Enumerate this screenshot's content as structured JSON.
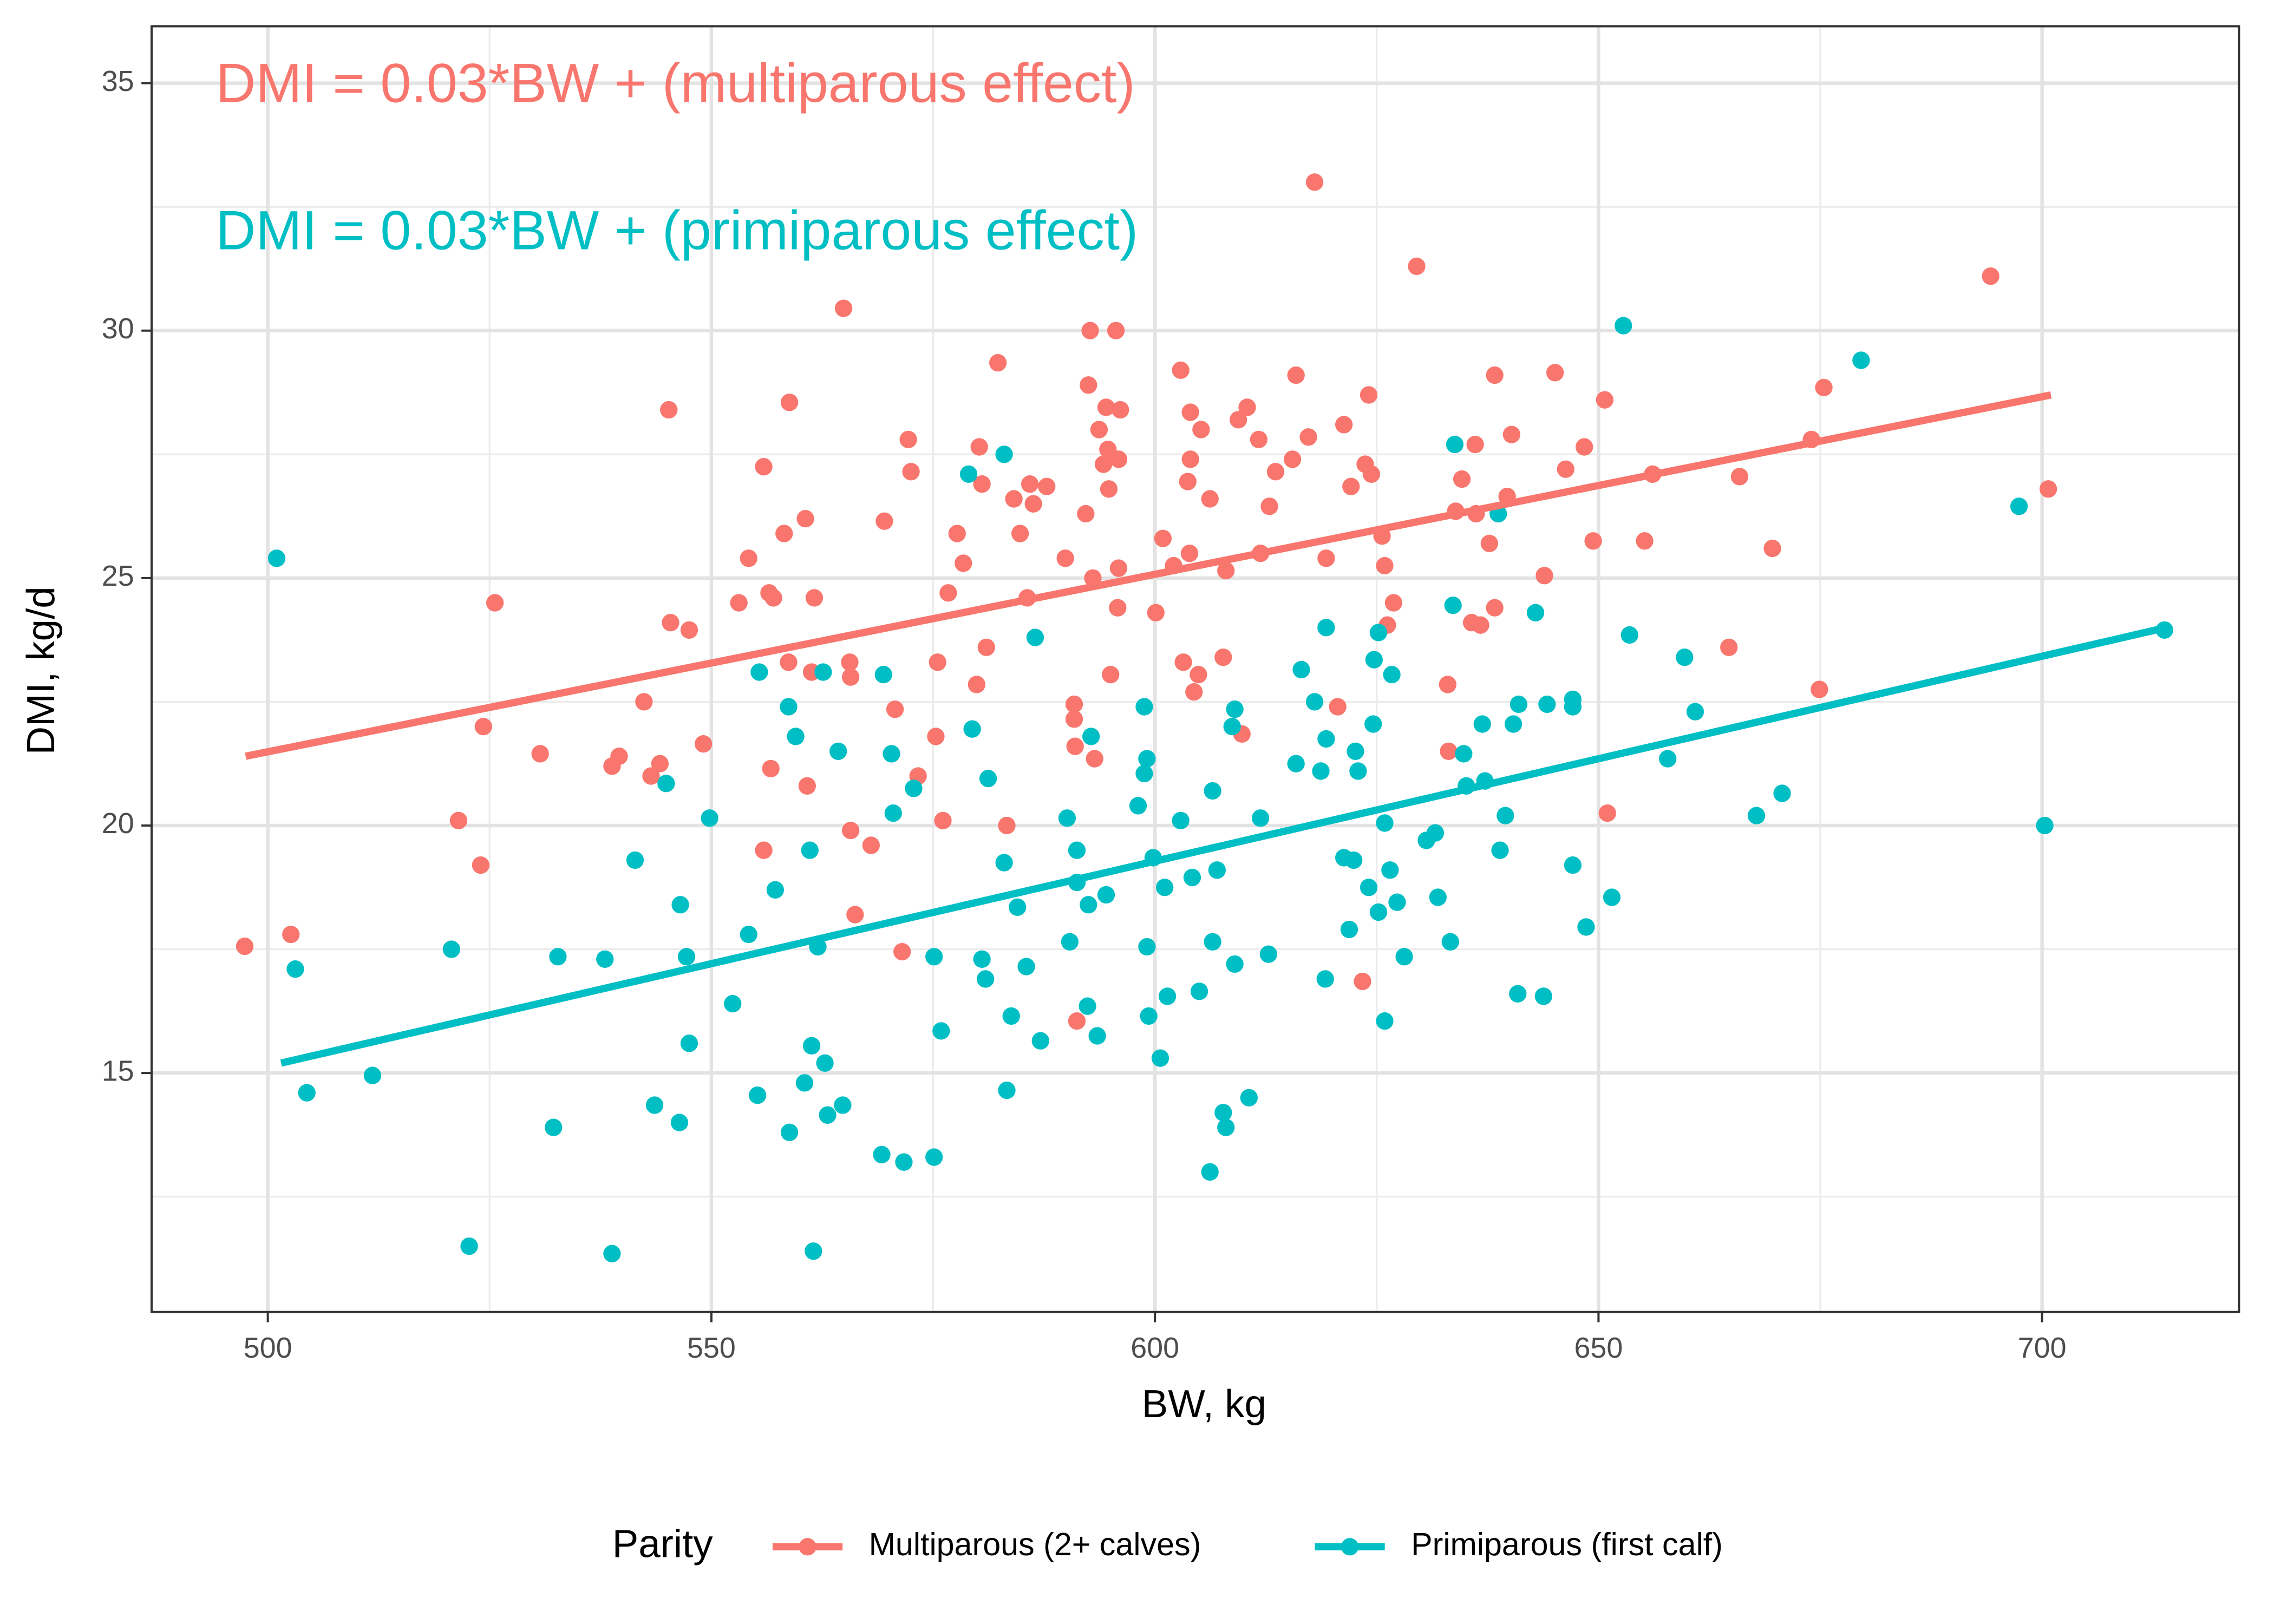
{
  "chart_data": {
    "type": "scatter",
    "xlabel": "BW, kg",
    "ylabel": "DMI, kg/d",
    "xlim": [
      486.9,
      722.2
    ],
    "ylim": [
      10.17,
      36.15
    ],
    "xticks": [
      500,
      550,
      600,
      650,
      700
    ],
    "yticks": [
      15,
      20,
      25,
      30,
      35
    ],
    "x_minor_ticks": [
      525,
      575,
      625,
      675
    ],
    "y_minor_ticks": [
      12.5,
      17.5,
      22.5,
      27.5,
      32.5
    ],
    "grid": true,
    "legend_title": "Parity",
    "legend_position": "bottom",
    "annotations": [
      {
        "text": "DMI = 0.03*BW + (multiparous effect)",
        "color": "#f8766d"
      },
      {
        "text": "DMI = 0.03*BW + (primiparous effect)",
        "color": "#00bfc4"
      }
    ],
    "series": [
      {
        "name": "Multiparous (2+ calves)",
        "color": "#f8766d",
        "fit": {
          "x": [
            497.5,
            701
          ],
          "y": [
            21.4,
            28.7
          ]
        },
        "x": [
          497.4,
          502.6,
          521.5,
          524,
          524.3,
          525.6,
          530.7,
          538.8,
          539.6,
          542.4,
          543.2,
          544.2,
          545.2,
          545.4,
          547.5,
          549.1,
          553.1,
          554.2,
          555.9,
          555.9,
          556.7,
          556.5,
          557,
          558.2,
          558.7,
          558.8,
          560.6,
          560.8,
          561.3,
          561.6,
          564.9,
          565.6,
          565.7,
          565.7,
          566.2,
          568,
          569.5,
          570.7,
          571.5,
          572.2,
          572.5,
          573.3,
          575.3,
          575.5,
          576.1,
          576.7,
          577.7,
          578.4,
          579.9,
          580.2,
          580.5,
          581,
          582.3,
          583.3,
          584.1,
          584.8,
          585.6,
          585.9,
          586.3,
          587.8,
          589.9,
          590.9,
          590.9,
          591,
          591.2,
          592.2,
          592.5,
          592.7,
          593,
          593.2,
          593.7,
          594.2,
          594.5,
          594.7,
          594.8,
          595,
          595.6,
          595.8,
          595.9,
          596.1,
          595.9,
          600.1,
          600.9,
          602.1,
          602.9,
          603.2,
          603.7,
          604,
          604,
          603.9,
          604.4,
          604.9,
          605.2,
          606.2,
          607.7,
          608,
          609.4,
          609.8,
          610.4,
          611.7,
          611.9,
          612.9,
          613.6,
          615.5,
          615.9,
          617.3,
          618,
          619.3,
          620.6,
          621.3,
          622.1,
          623.4,
          623.7,
          624.1,
          624.4,
          625.6,
          625.9,
          626.2,
          626.9,
          629.5,
          633,
          633.1,
          633.9,
          634.6,
          635.7,
          636.1,
          636.2,
          636.7,
          637.7,
          638.3,
          638.3,
          639.7,
          640.2,
          643.9,
          645.1,
          646.3,
          648.4,
          649.4,
          650.7,
          651,
          655.2,
          656.1,
          664.7,
          665.9,
          669.6,
          674,
          674.9,
          675.4,
          694.2,
          700.7
        ],
        "values": [
          17.56,
          17.8,
          20.1,
          19.2,
          22.0,
          24.5,
          21.45,
          21.2,
          21.4,
          22.5,
          21.0,
          21.25,
          28.4,
          24.1,
          23.95,
          21.65,
          24.5,
          25.4,
          27.25,
          19.5,
          21.15,
          24.7,
          24.6,
          25.9,
          23.3,
          28.55,
          26.2,
          20.8,
          23.1,
          24.6,
          30.45,
          23.3,
          23.0,
          19.9,
          18.2,
          19.6,
          26.15,
          22.35,
          17.45,
          27.8,
          27.15,
          21.0,
          21.8,
          23.3,
          20.1,
          24.7,
          25.9,
          25.3,
          22.85,
          27.65,
          26.9,
          23.6,
          29.35,
          20.0,
          26.6,
          25.9,
          24.6,
          26.9,
          26.5,
          26.85,
          25.4,
          22.45,
          22.15,
          21.6,
          16.05,
          26.3,
          28.9,
          30.0,
          25.0,
          21.35,
          28.0,
          27.3,
          28.45,
          27.6,
          26.8,
          23.05,
          30.0,
          24.4,
          25.2,
          28.4,
          27.4,
          24.3,
          25.8,
          25.25,
          29.2,
          23.3,
          26.95,
          27.4,
          28.35,
          25.5,
          22.7,
          23.05,
          28.0,
          26.6,
          23.4,
          25.15,
          28.2,
          21.85,
          28.45,
          27.8,
          25.5,
          26.45,
          27.15,
          27.4,
          29.1,
          27.85,
          33.0,
          25.4,
          22.4,
          28.1,
          26.85,
          16.85,
          27.3,
          28.7,
          27.1,
          25.85,
          25.25,
          24.05,
          24.5,
          31.3,
          22.85,
          21.5,
          26.35,
          27.0,
          24.1,
          27.7,
          26.3,
          24.05,
          25.7,
          24.4,
          29.1,
          26.65,
          27.9,
          25.05,
          29.15,
          27.2,
          27.65,
          25.75,
          28.6,
          20.25,
          25.75,
          27.1,
          23.6,
          27.05,
          25.6,
          27.8,
          22.75,
          28.85,
          31.1,
          26.8
        ]
      },
      {
        "name": "Primiparous (first calf)",
        "color": "#00bfc4",
        "fit": {
          "x": [
            501.5,
            714
          ],
          "y": [
            15.2,
            24.0
          ]
        },
        "x": [
          501,
          503.1,
          504.4,
          511.8,
          520.7,
          522.7,
          532.2,
          532.7,
          538,
          538.8,
          541.4,
          543.6,
          544.9,
          546.4,
          546.5,
          547.2,
          547.5,
          549.8,
          552.4,
          554.2,
          555.4,
          555.2,
          557.2,
          558.7,
          558.8,
          559.5,
          560.5,
          561.1,
          561.3,
          561.5,
          562,
          562.6,
          562.8,
          563.1,
          564.3,
          564.8,
          569.2,
          569.4,
          570.3,
          570.5,
          571.7,
          572.8,
          575.1,
          575.1,
          575.9,
          579,
          579.4,
          580.5,
          580.9,
          581.2,
          583,
          583,
          583.3,
          583.8,
          584.5,
          585.5,
          586.5,
          587.1,
          590.1,
          590.4,
          591.2,
          591.2,
          592.4,
          592.5,
          592.8,
          593.5,
          594.5,
          598.1,
          598.8,
          598.8,
          599.1,
          599.1,
          599.3,
          599.8,
          600.6,
          601.1,
          601.4,
          602.9,
          604.2,
          605,
          606.2,
          606.5,
          606.5,
          607,
          607.7,
          608,
          608.7,
          609,
          609,
          610.6,
          611.9,
          612.8,
          615.9,
          616.5,
          618,
          618.7,
          619.2,
          619.3,
          619.3,
          621.3,
          621.9,
          622.4,
          622.6,
          622.9,
          624.1,
          624.6,
          624.7,
          625.2,
          625.2,
          625.9,
          625.9,
          626.5,
          626.7,
          627.3,
          628.1,
          630.6,
          631.6,
          631.9,
          633.3,
          633.6,
          633.8,
          634.8,
          635.1,
          636.9,
          637.2,
          638.7,
          638.9,
          639.5,
          640.4,
          640.9,
          641,
          642.9,
          643.8,
          644.2,
          647.1,
          647.1,
          647.1,
          648.6,
          651.5,
          652.8,
          653.5,
          657.8,
          659.7,
          660.9,
          667.8,
          670.7,
          679.6,
          697.4,
          700.3,
          713.8
        ],
        "values": [
          25.4,
          17.1,
          14.6,
          14.95,
          17.5,
          11.5,
          13.9,
          17.35,
          17.3,
          11.35,
          19.3,
          14.35,
          20.85,
          14.0,
          18.4,
          17.35,
          15.6,
          20.15,
          16.4,
          17.8,
          23.1,
          14.55,
          18.7,
          22.4,
          13.8,
          21.8,
          14.8,
          19.5,
          15.55,
          11.4,
          17.55,
          23.1,
          15.2,
          14.15,
          21.5,
          14.35,
          13.35,
          23.05,
          21.45,
          20.25,
          13.2,
          20.75,
          13.3,
          17.35,
          15.85,
          27.1,
          21.95,
          17.3,
          16.9,
          20.95,
          27.5,
          19.25,
          14.65,
          16.15,
          18.35,
          17.15,
          23.8,
          15.65,
          20.15,
          17.65,
          18.85,
          19.5,
          16.35,
          18.4,
          21.8,
          15.75,
          18.6,
          20.4,
          21.05,
          22.4,
          21.35,
          17.55,
          16.15,
          19.35,
          15.3,
          18.75,
          16.55,
          20.1,
          18.95,
          16.65,
          13.0,
          20.7,
          17.65,
          19.1,
          14.2,
          13.9,
          22.0,
          22.35,
          17.2,
          14.5,
          20.15,
          17.4,
          21.25,
          23.15,
          22.5,
          21.1,
          16.9,
          24.0,
          21.75,
          19.35,
          17.9,
          19.3,
          21.5,
          21.1,
          18.75,
          22.05,
          23.35,
          23.9,
          18.25,
          20.05,
          16.05,
          19.1,
          23.05,
          18.45,
          17.35,
          19.7,
          19.85,
          18.55,
          17.65,
          24.45,
          27.7,
          21.45,
          20.8,
          22.05,
          20.9,
          26.3,
          19.5,
          20.2,
          22.05,
          16.6,
          22.45,
          24.3,
          16.55,
          22.45,
          22.55,
          22.4,
          19.2,
          17.95,
          18.55,
          30.1,
          23.85,
          21.35,
          23.4,
          22.3,
          20.2,
          20.65,
          29.4,
          26.45,
          20.0,
          23.95
        ]
      }
    ]
  }
}
